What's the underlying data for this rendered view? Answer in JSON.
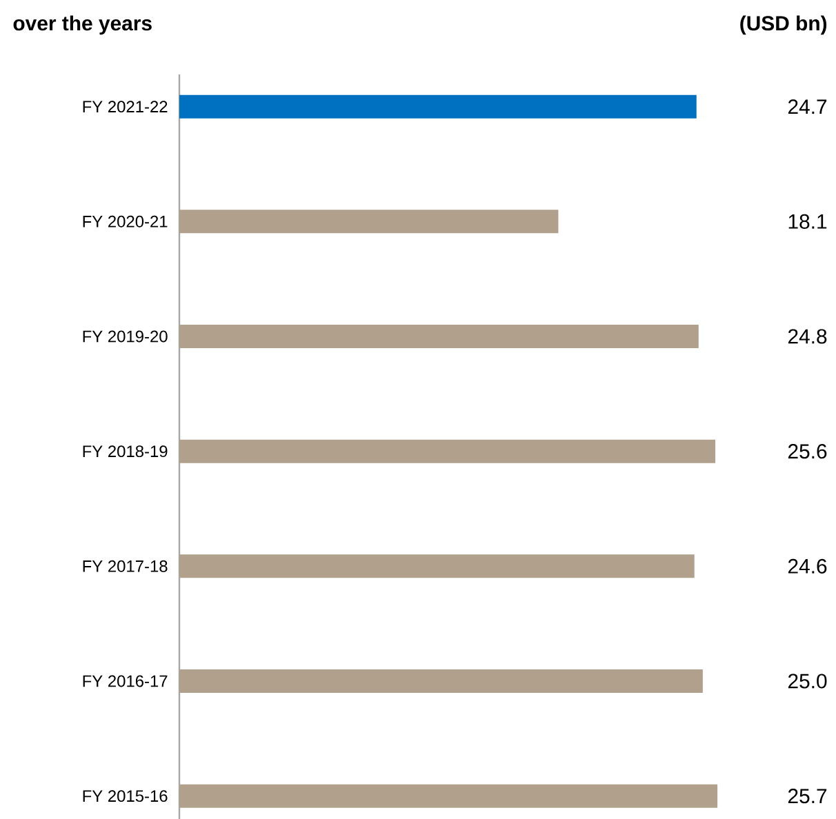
{
  "chart_data": {
    "type": "bar",
    "orientation": "horizontal",
    "title": "over the years",
    "subtitle": "(USD bn)",
    "categories": [
      "FY 2021-22",
      "FY 2020-21",
      "FY 2019-20",
      "FY 2018-19",
      "FY 2017-18",
      "FY 2016-17",
      "FY 2015-16"
    ],
    "values": [
      24.7,
      18.1,
      24.8,
      25.6,
      24.6,
      25.0,
      25.7
    ],
    "value_labels": [
      "24.7",
      "18.1",
      "24.8",
      "25.6",
      "24.6",
      "25.0",
      "25.7"
    ],
    "colors": [
      "#0070c0",
      "#b0a08c",
      "#b0a08c",
      "#b0a08c",
      "#b0a08c",
      "#b0a08c",
      "#b0a08c"
    ],
    "tick_labels": "y"
  }
}
